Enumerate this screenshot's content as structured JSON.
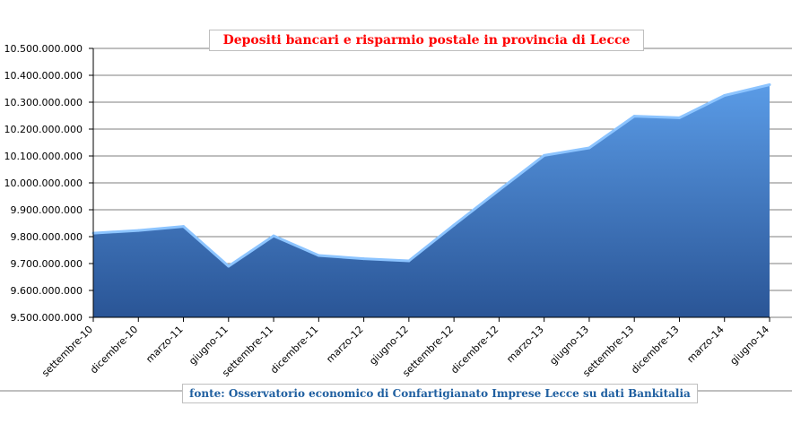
{
  "chart_data": {
    "type": "area",
    "title": "Depositi bancari e risparmio postale in provincia di Lecce",
    "source": "fonte: Osservatorio economico di Confartigianato Imprese Lecce su dati Bankitalia",
    "categories": [
      "settembre-10",
      "dicembre-10",
      "marzo-11",
      "giugno-11",
      "settembre-11",
      "dicembre-11",
      "marzo-12",
      "giugno-12",
      "settembre-12",
      "dicembre-12",
      "marzo-13",
      "giugno-13",
      "settembre-13",
      "dicembre-13",
      "marzo-14",
      "giugno-14"
    ],
    "values": [
      9813000000,
      9823000000,
      9838000000,
      9690000000,
      9803000000,
      9730000000,
      9718000000,
      9710000000,
      9843000000,
      9973000000,
      10102000000,
      10130000000,
      10248000000,
      10242000000,
      10325000000,
      10365000000
    ],
    "ylim": [
      9500000000,
      10500000000
    ],
    "yticks": [
      9500000000,
      9600000000,
      9700000000,
      9800000000,
      9900000000,
      10000000000,
      10100000000,
      10200000000,
      10300000000,
      10400000000,
      10500000000
    ],
    "ytick_labels": [
      "9.500.000.000",
      "9.600.000.000",
      "9.700.000.000",
      "9.800.000.000",
      "9.900.000.000",
      "10.000.000.000",
      "10.100.000.000",
      "10.200.000.000",
      "10.300.000.000",
      "10.400.000.000",
      "10.500.000.000"
    ],
    "xlabel": "",
    "ylabel": "",
    "grid": true,
    "legend": false,
    "colors": {
      "area_top": "#5a9be6",
      "area_bottom": "#2a5596",
      "edge": "#8cc4ff",
      "grid": "#000000",
      "title": "#ff0000",
      "source": "#1f5fa0"
    }
  }
}
